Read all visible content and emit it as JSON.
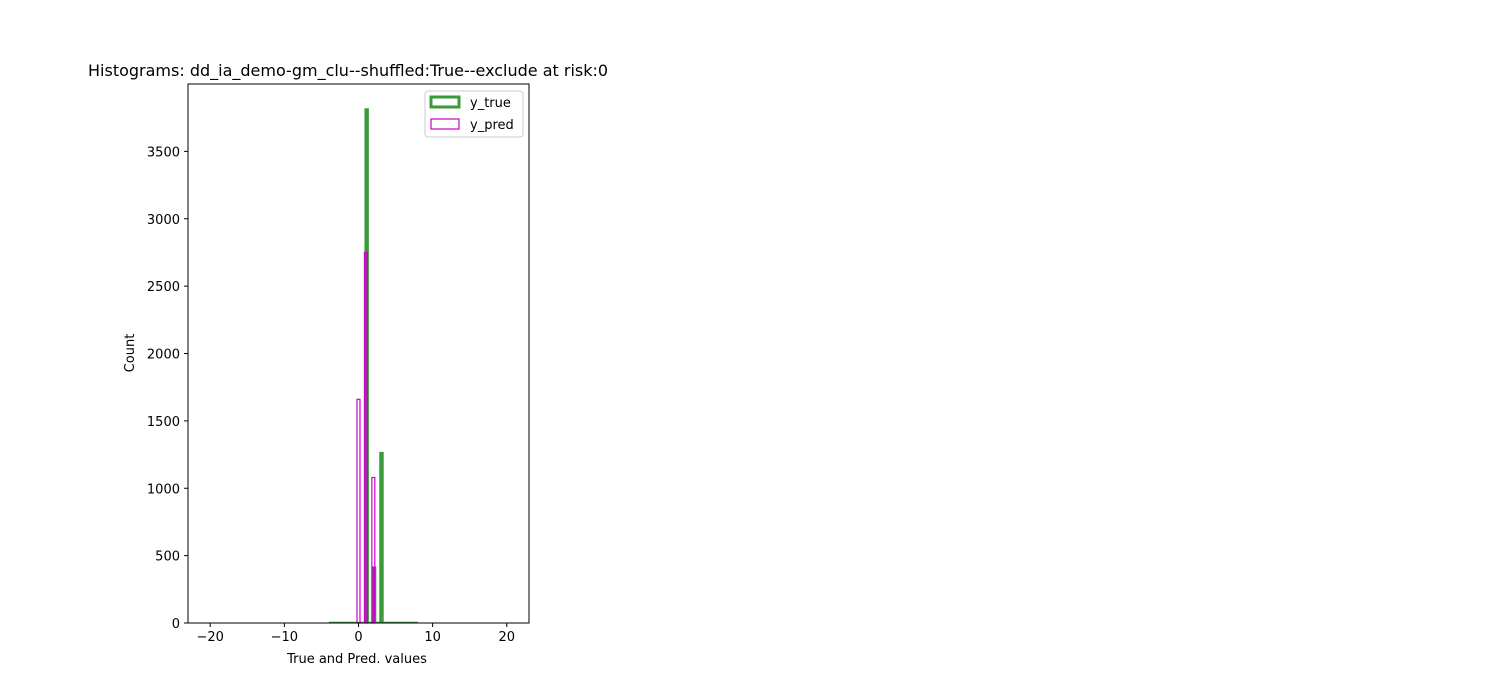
{
  "chart_data": {
    "type": "bar",
    "title": "Histograms: dd_ia_demo-gm_clu--shuffled:True--exclude at risk:0",
    "xlabel": "True and Pred. values",
    "ylabel": "Count",
    "xlim": [
      -23,
      23
    ],
    "ylim": [
      0,
      4000
    ],
    "x_ticks": [
      -20,
      -10,
      0,
      10,
      20
    ],
    "x_tick_labels": [
      "−20",
      "−10",
      "0",
      "10",
      "20"
    ],
    "y_ticks": [
      0,
      500,
      1000,
      1500,
      2000,
      2500,
      3000,
      3500
    ],
    "y_tick_labels": [
      "0",
      "500",
      "1000",
      "1500",
      "2000",
      "2500",
      "3000",
      "3500"
    ],
    "grid": false,
    "legend_position": "top-right",
    "series": [
      {
        "name": "y_true",
        "style": "step-filled",
        "color": "#3a9a3a",
        "bins": [
          {
            "x0": 0.8,
            "x1": 1.4,
            "count": 3820
          },
          {
            "x0": 1.8,
            "x1": 2.4,
            "count": 420
          },
          {
            "x0": 2.8,
            "x1": 3.4,
            "count": 1270
          }
        ],
        "baseline_range": [
          -4,
          8
        ]
      },
      {
        "name": "y_pred",
        "style": "step",
        "color": "#cc00cc",
        "bins": [
          {
            "x0": -0.2,
            "x1": 0.2,
            "count": 1660
          },
          {
            "x0": 0.8,
            "x1": 1.2,
            "count": 2750
          },
          {
            "x0": 1.8,
            "x1": 2.2,
            "count": 1080
          }
        ],
        "overlap_color": "#8a3d8a"
      }
    ]
  }
}
